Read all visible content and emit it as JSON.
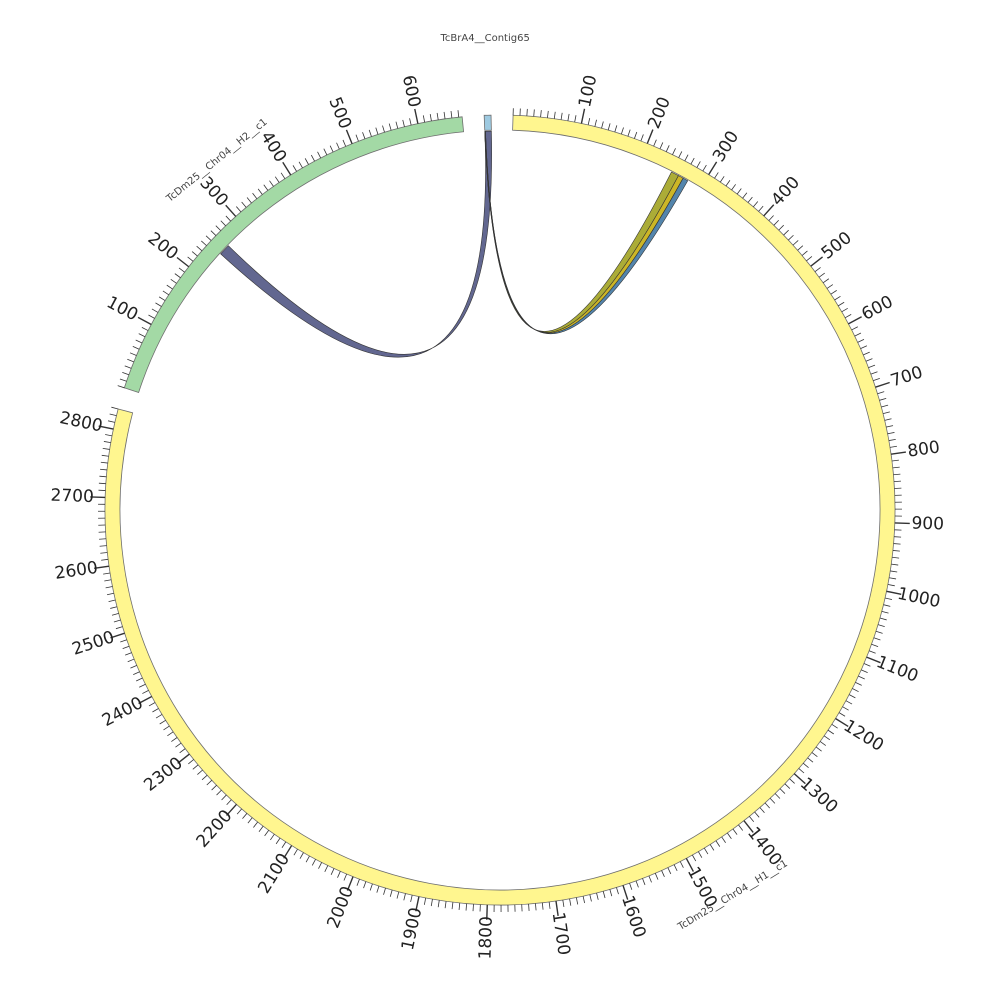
{
  "colors": {
    "yellow_band": "#fff68f",
    "green_band": "#a3d9a5",
    "blue_band": "#9ecae1",
    "outline": "#6e6e6e",
    "tick": "#333333",
    "ribbon_dark": "#5a5f8a",
    "ribbon_olive": "#a6a82c",
    "ribbon_gold": "#c9b21a",
    "ribbon_steel": "#4a7ea8"
  },
  "chart_data": {
    "type": "chord",
    "segments": [
      {
        "id": "contig65",
        "name": "TcBrA4__Contig65",
        "length": 10,
        "color": "#9ecae1",
        "labels": []
      },
      {
        "id": "h1",
        "name": "TcDm25__Chr04__H1__c1",
        "length": 2830,
        "color": "#fff68f",
        "labels": [
          "100",
          "200",
          "300",
          "400",
          "500",
          "600",
          "700",
          "800",
          "900",
          "1000",
          "1100",
          "1200",
          "1300",
          "1400",
          "1500",
          "1600",
          "1700",
          "1800",
          "1900",
          "2000",
          "2100",
          "2200",
          "2300",
          "2400",
          "2500",
          "2600",
          "2700",
          "2800"
        ]
      },
      {
        "id": "h2",
        "name": "TcDm25__Chr04__H2__c1",
        "length": 665,
        "color": "#a3d9a5",
        "labels": [
          "100",
          "200",
          "300",
          "400",
          "500",
          "600"
        ]
      }
    ],
    "links": [
      {
        "from": "contig65",
        "from_start": 0,
        "from_end": 10,
        "to": "h2",
        "to_start": 245,
        "to_end": 262,
        "color": "#5a5f8a"
      },
      {
        "from": "contig65",
        "from_start": 0,
        "from_end": 1,
        "to": "h1",
        "to_start": 250,
        "to_end": 262,
        "color": "#a6a82c"
      },
      {
        "from": "contig65",
        "from_start": 0,
        "from_end": 1,
        "to": "h1",
        "to_start": 262,
        "to_end": 270,
        "color": "#c9b21a"
      },
      {
        "from": "contig65",
        "from_start": 0,
        "from_end": 1,
        "to": "h1",
        "to_start": 270,
        "to_end": 278,
        "color": "#4a7ea8"
      }
    ]
  }
}
